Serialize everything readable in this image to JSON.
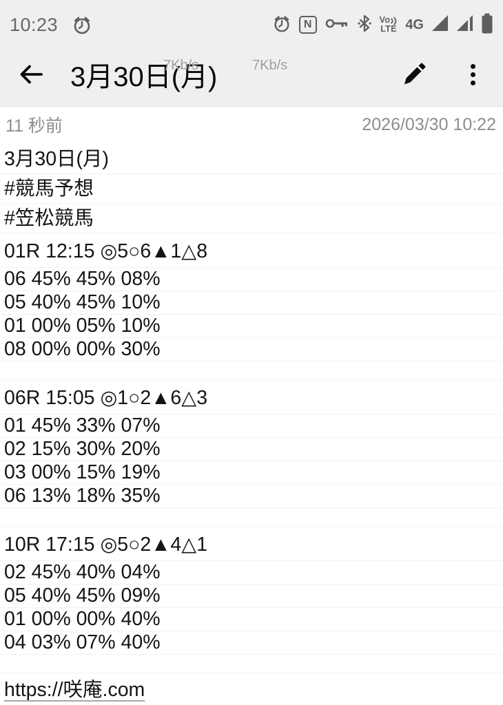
{
  "status_bar": {
    "time": "10:23",
    "nfc_letter": "N",
    "volte_top": "Vo",
    "volte_bottom": "LTE",
    "network_label": "4G",
    "icons": [
      "alarm-icon",
      "alarm-icon",
      "nfc-icon",
      "vpn-key-icon",
      "bluetooth-icon",
      "volte-icon",
      "signal-triangle-icon",
      "signal-triangle-secondary-icon",
      "battery-icon"
    ]
  },
  "speed_overlays": {
    "left": "7Kb/s",
    "right": "7Kb/s"
  },
  "app_bar": {
    "title": "3月30日(月)"
  },
  "note_meta": {
    "edited_relative": "11 秒前",
    "edited_timestamp": "2026/03/30 10:22"
  },
  "note_lines": [
    {
      "type": "jp",
      "text": "3月30日(月)"
    },
    {
      "type": "jp",
      "text": "#競馬予想"
    },
    {
      "type": "jp",
      "text": "#笠松競馬"
    },
    {
      "type": "race",
      "text": "01R 12:15 ◎5○6▲1△8"
    },
    {
      "type": "num",
      "text": "06 45% 45% 08%"
    },
    {
      "type": "num",
      "text": "05 40% 45% 10%"
    },
    {
      "type": "num",
      "text": "01 00% 05% 10%"
    },
    {
      "type": "num",
      "text": "08 00% 00% 30%"
    },
    {
      "type": "blank",
      "text": ""
    },
    {
      "type": "race",
      "text": "06R 15:05 ◎1○2▲6△3"
    },
    {
      "type": "num",
      "text": "01 45% 33% 07%"
    },
    {
      "type": "num",
      "text": "02 15% 30% 20%"
    },
    {
      "type": "num",
      "text": "03 00% 15% 19%"
    },
    {
      "type": "num",
      "text": "06 13% 18% 35%"
    },
    {
      "type": "blank",
      "text": ""
    },
    {
      "type": "race",
      "text": "10R 17:15 ◎5○2▲4△1"
    },
    {
      "type": "num",
      "text": "02 45% 40% 04%"
    },
    {
      "type": "num",
      "text": "05 40% 45% 09%"
    },
    {
      "type": "num",
      "text": "01 00% 00% 40%"
    },
    {
      "type": "num",
      "text": "04 03% 07% 40%"
    },
    {
      "type": "blank",
      "text": ""
    },
    {
      "type": "url",
      "text": "https://咲庵.com"
    }
  ],
  "colors": {
    "top_background": "#efefef",
    "status_icon_gray": "#5e5e5e",
    "meta_gray": "#8d8d8d",
    "note_text": "#141414",
    "ruled_line": "#f2f2f2"
  }
}
